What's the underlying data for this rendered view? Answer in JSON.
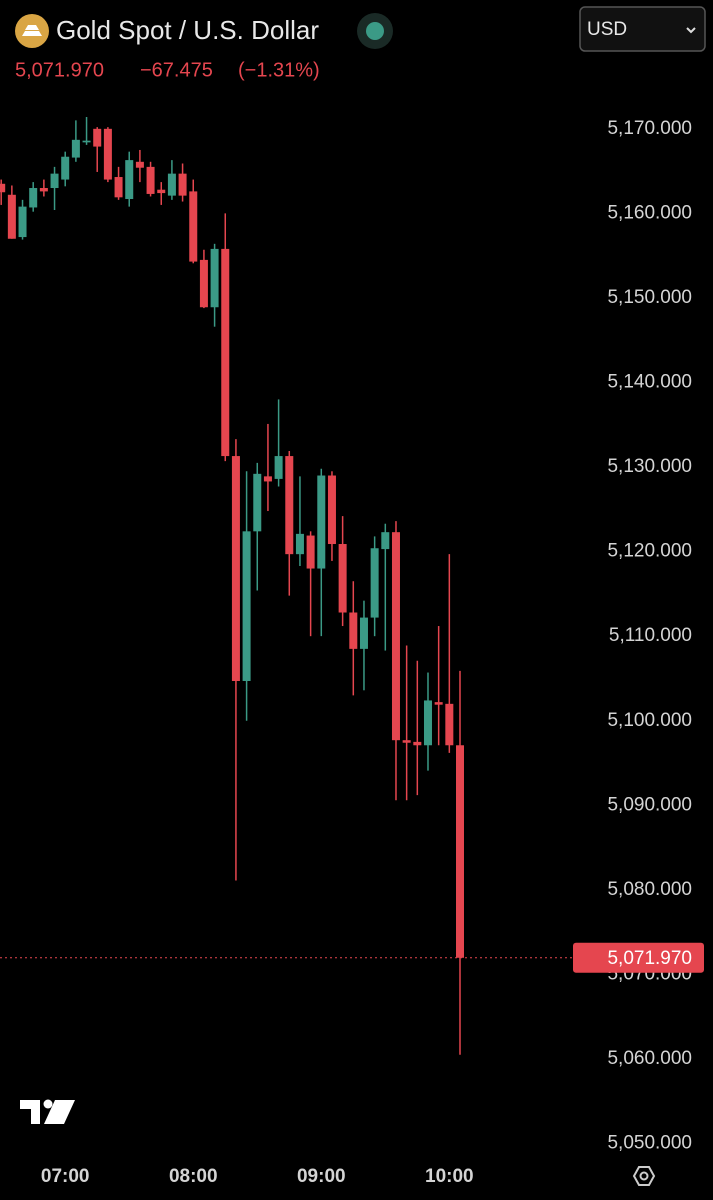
{
  "header": {
    "title": "Gold Spot / U.S. Dollar",
    "change": "−67.475",
    "change_percent": "(−1.31%)",
    "currency": "USD"
  },
  "chart_data": {
    "type": "candlestick",
    "categories": [
      null,
      null,
      null,
      null,
      null,
      null,
      "07:00",
      null,
      null,
      null,
      null,
      null,
      null,
      null,
      null,
      null,
      null,
      null,
      "08:00",
      null,
      null,
      null,
      null,
      null,
      null,
      null,
      null,
      null,
      null,
      null,
      "09:00",
      null,
      null,
      null,
      null,
      null,
      null,
      null,
      null,
      null,
      null,
      null,
      "10:00",
      null
    ],
    "open": [
      5163.5,
      5162.2,
      5157.2,
      5160.7,
      5163.0,
      5163.0,
      5164.0,
      5166.6,
      5168.4,
      5170.0,
      5170.0,
      5164.3,
      5161.7,
      5166.1,
      5165.5,
      5162.8,
      5162.1,
      5164.7,
      5162.6,
      5154.5,
      5148.9,
      5155.8,
      5131.3,
      5104.7,
      5122.4,
      5128.9,
      5128.6,
      5131.3,
      5119.7,
      5121.9,
      5118.0,
      5129.0,
      5120.9,
      5112.8,
      5108.5,
      5112.2,
      5120.3,
      5122.3,
      5097.7,
      5097.5,
      5097.1,
      5102.2,
      5102.0,
      5097.1
    ],
    "high": [
      5164.0,
      5163.3,
      5161.6,
      5163.7,
      5164.0,
      5165.5,
      5167.3,
      5171.0,
      5171.4,
      5170.2,
      5170.2,
      5165.5,
      5167.3,
      5167.5,
      5166.1,
      5163.7,
      5166.3,
      5165.9,
      5164.0,
      5155.7,
      5156.4,
      5160.0,
      5133.3,
      5129.5,
      5130.5,
      5135.1,
      5138.0,
      5131.9,
      5128.9,
      5122.4,
      5129.8,
      5129.5,
      5124.2,
      5116.5,
      5114.2,
      5121.8,
      5123.3,
      5123.6,
      5108.9,
      5107.1,
      5105.7,
      5111.2,
      5119.7,
      5105.9
    ],
    "low": [
      5161.0,
      5157.0,
      5156.9,
      5160.2,
      5162.0,
      5160.4,
      5163.2,
      5166.1,
      5168.1,
      5164.9,
      5163.7,
      5161.6,
      5160.8,
      5163.7,
      5162.0,
      5161.0,
      5161.6,
      5161.4,
      5154.1,
      5148.8,
      5146.6,
      5130.7,
      5081.1,
      5100.0,
      5115.4,
      5124.8,
      5127.7,
      5114.8,
      5118.3,
      5110.0,
      5110.0,
      5118.9,
      5111.2,
      5103.0,
      5103.6,
      5110.0,
      5108.3,
      5090.6,
      5090.6,
      5091.2,
      5094.1,
      5097.1,
      5096.2,
      5060.5
    ],
    "close": [
      5162.5,
      5157.0,
      5160.8,
      5163.0,
      5162.6,
      5164.7,
      5166.7,
      5168.7,
      5168.6,
      5167.9,
      5164.0,
      5161.9,
      5166.3,
      5165.4,
      5162.3,
      5162.4,
      5164.7,
      5162.1,
      5154.3,
      5148.9,
      5155.8,
      5131.3,
      5104.7,
      5122.4,
      5129.2,
      5128.3,
      5131.3,
      5119.7,
      5122.1,
      5118.0,
      5129.0,
      5120.9,
      5112.8,
      5108.5,
      5112.2,
      5120.4,
      5122.3,
      5097.7,
      5097.4,
      5097.1,
      5102.4,
      5101.9,
      5097.1,
      5071.97
    ],
    "up_color": "#3b9a86",
    "down_color": "#e5464f",
    "last": {
      "value": 5071.97,
      "label": "5,071.970"
    },
    "ylim": [
      5049,
      5174
    ],
    "yticks": [
      {
        "value": 5050,
        "label": "5,050.000"
      },
      {
        "value": 5060,
        "label": "5,060.000"
      },
      {
        "value": 5070,
        "label": "5,070.000"
      },
      {
        "value": 5080,
        "label": "5,080.000"
      },
      {
        "value": 5090,
        "label": "5,090.000"
      },
      {
        "value": 5100,
        "label": "5,100.000"
      },
      {
        "value": 5110,
        "label": "5,110.000"
      },
      {
        "value": 5120,
        "label": "5,120.000"
      },
      {
        "value": 5130,
        "label": "5,130.000"
      },
      {
        "value": 5140,
        "label": "5,140.000"
      },
      {
        "value": 5150,
        "label": "5,150.000"
      },
      {
        "value": 5160,
        "label": "5,160.000"
      },
      {
        "value": 5170,
        "label": "5,170.000"
      }
    ]
  }
}
